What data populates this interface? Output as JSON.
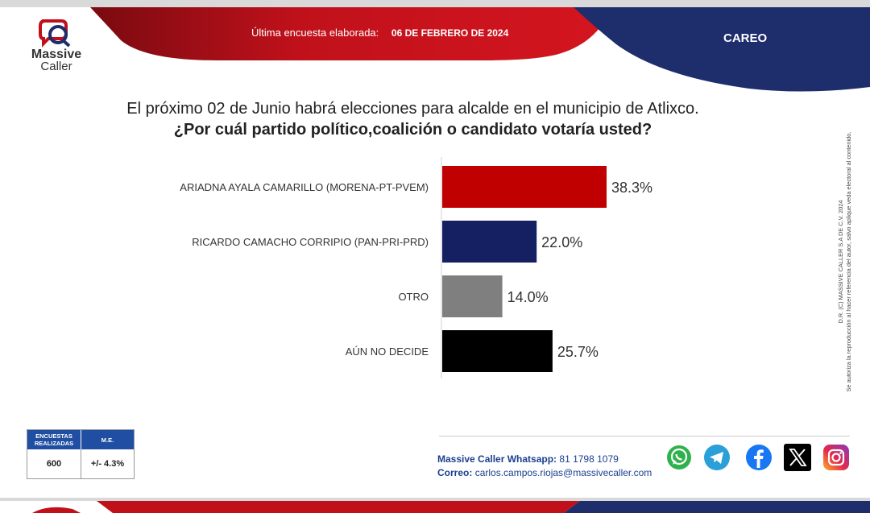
{
  "header": {
    "last_survey_label": "Última encuesta elaborada:",
    "last_survey_date": "06 DE FEBRERO DE 2024",
    "section": "CAREO",
    "colors": {
      "red": "#c0111b",
      "navy": "#1e2d6b"
    }
  },
  "logo": {
    "line1": "Massive",
    "line2": "Caller"
  },
  "question": {
    "line1": "El próximo 02 de Junio habrá elecciones para alcalde en el municipio de  Atlixco.",
    "line2": "¿Por cuál partido político,coalición o candidato votaría usted?"
  },
  "chart_data": {
    "type": "bar",
    "orientation": "horizontal",
    "categories": [
      "ARIADNA AYALA CAMARILLO (MORENA-PT-PVEM)",
      "RICARDO CAMACHO CORRIPIO (PAN-PRI-PRD)",
      "OTRO",
      "AÚN NO DECIDE"
    ],
    "values": [
      38.3,
      22.0,
      14.0,
      25.7
    ],
    "labels": [
      "38.3%",
      "22.0%",
      "14.0%",
      "25.7%"
    ],
    "colors": [
      "#c00000",
      "#142062",
      "#7f7f7f",
      "#000000"
    ],
    "xlim": [
      0,
      50
    ],
    "grid": false
  },
  "stats": {
    "col1_header": "ENCUESTAS REALIZADAS",
    "col2_header": "M.E.",
    "col1_value": "600",
    "col2_value": "+/- 4.3%"
  },
  "contact": {
    "whatsapp_label": "Massive Caller Whatsapp:",
    "whatsapp_number": "81 1798 1079",
    "email_label": "Correo:",
    "email": "carlos.campos.riojas@massivecaller.com"
  },
  "social_icons": [
    "whatsapp-icon",
    "telegram-icon",
    "facebook-icon",
    "x-icon",
    "instagram-icon"
  ],
  "disclaimer": {
    "line1": "D.R. (C) MASSIVE CALLER S.A DE C.V. 2024",
    "line2": "Se autoriza la reproducción al hacer referencia del autor, salvo aplique veda electoral al contenido."
  }
}
